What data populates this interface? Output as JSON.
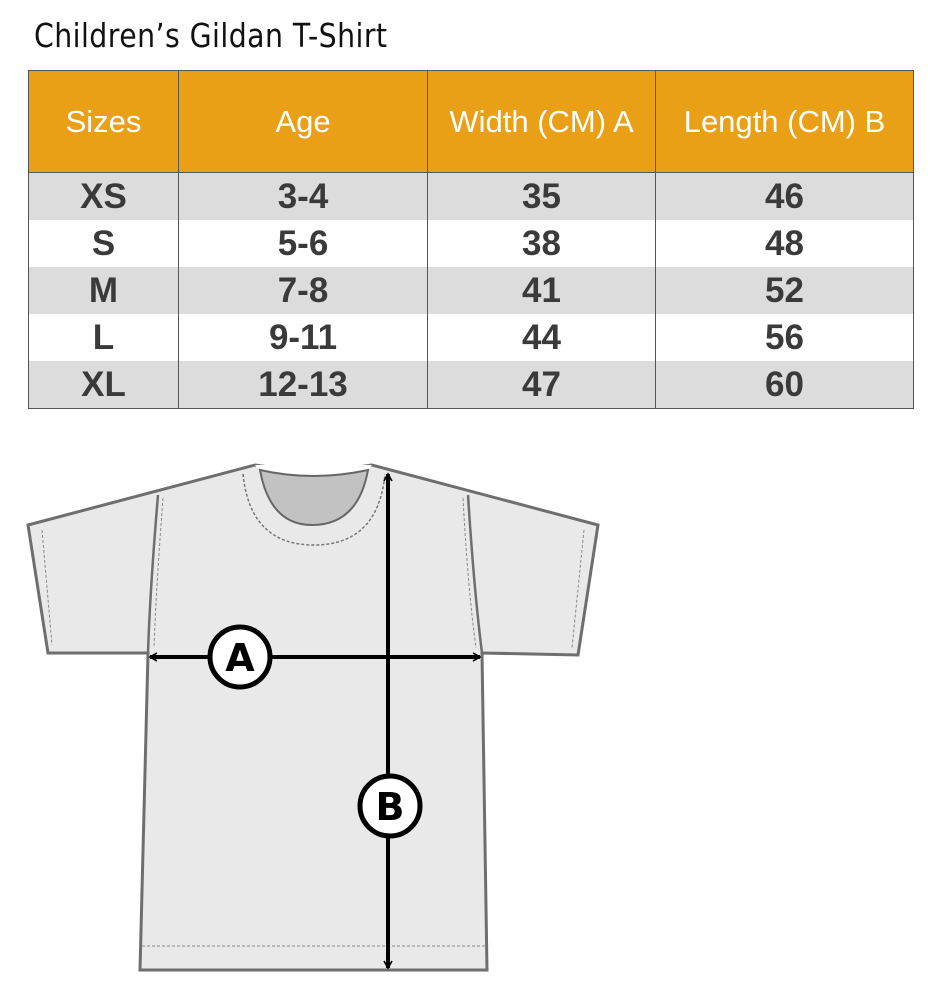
{
  "title": "Children’s Gildan T-Shirt",
  "table": {
    "headers": [
      "Sizes",
      "Age",
      "Width (CM) A",
      "Length  (CM) B"
    ],
    "rows": [
      [
        "XS",
        "3-4",
        "35",
        "46"
      ],
      [
        "S",
        "5-6",
        "38",
        "48"
      ],
      [
        "M",
        "7-8",
        "41",
        "52"
      ],
      [
        "L",
        "9-11",
        "44",
        "56"
      ],
      [
        "XL",
        "12-13",
        "47",
        "60"
      ]
    ]
  },
  "diagram": {
    "label_a": "A",
    "label_b": "B"
  },
  "colors": {
    "header": "#e99f16",
    "row_alt": "#dcdcdc",
    "shirt": "#e9e9e9"
  }
}
